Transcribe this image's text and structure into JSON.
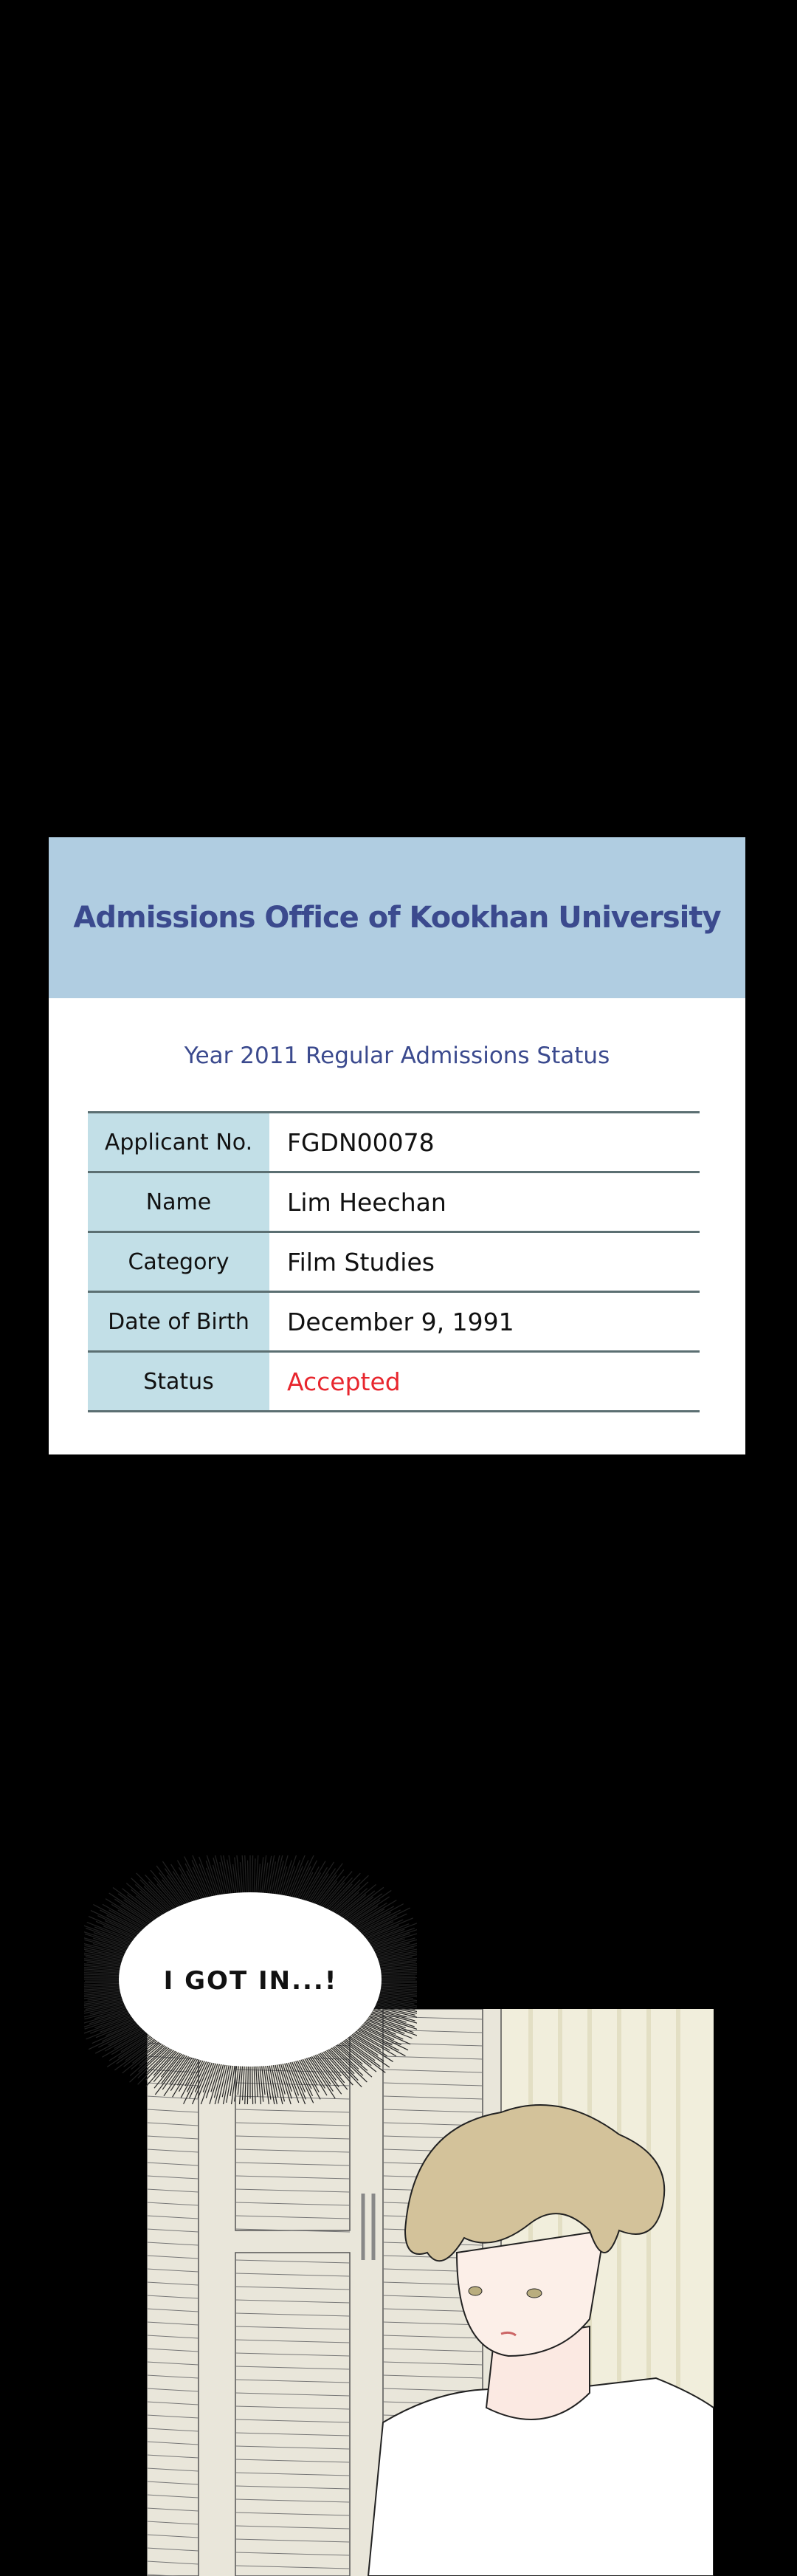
{
  "card": {
    "title": "Admissions Office of Kookhan University",
    "subtitle": "Year 2011 Regular Admissions Status",
    "rows": [
      {
        "label": "Applicant No.",
        "value": "FGDN00078"
      },
      {
        "label": "Name",
        "value": "Lim Heechan"
      },
      {
        "label": "Category",
        "value": "Film Studies"
      },
      {
        "label": "Date of Birth",
        "value": "December 9, 1991"
      },
      {
        "label": "Status",
        "value": "Accepted"
      }
    ],
    "colors": {
      "header": "#b0cde1",
      "title": "#3b4a8e",
      "label_bg": "#c2dfe7",
      "accepted": "#e8262e"
    }
  },
  "panel": {
    "speech": "I GOT IN...!"
  }
}
